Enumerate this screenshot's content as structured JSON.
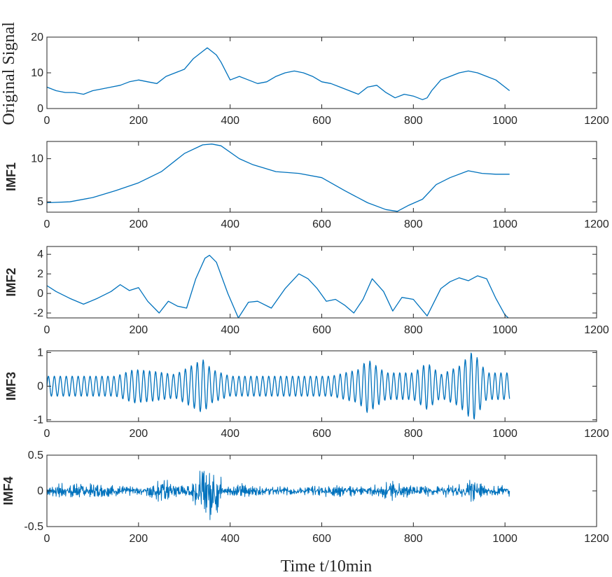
{
  "figure": {
    "xlabel": "Time t/10min",
    "line_color": "#0072BD"
  },
  "chart_data": [
    {
      "type": "line",
      "ylabel": "Original Signal",
      "xlim": [
        0,
        1200
      ],
      "ylim": [
        0,
        20
      ],
      "xticks": [
        0,
        200,
        400,
        600,
        800,
        1000,
        1200
      ],
      "yticks": [
        0,
        10,
        20
      ],
      "series": [
        {
          "name": "Original Signal",
          "x": [
            0,
            20,
            40,
            60,
            80,
            100,
            120,
            140,
            160,
            180,
            200,
            220,
            240,
            260,
            280,
            300,
            320,
            340,
            350,
            360,
            370,
            380,
            400,
            420,
            440,
            460,
            480,
            500,
            520,
            540,
            560,
            580,
            600,
            620,
            640,
            660,
            680,
            700,
            720,
            740,
            760,
            780,
            800,
            820,
            830,
            840,
            860,
            880,
            900,
            920,
            940,
            960,
            980,
            1000,
            1010
          ],
          "y": [
            6,
            5,
            4.5,
            4.5,
            4,
            5,
            5.5,
            6,
            6.5,
            7.5,
            8,
            7.5,
            7,
            9,
            10,
            11,
            14,
            16,
            17,
            16,
            15,
            13,
            8,
            9,
            8,
            7,
            7.5,
            9,
            10,
            10.5,
            10,
            9,
            7.5,
            7,
            6,
            5,
            4,
            6,
            6.5,
            4.5,
            3,
            4,
            3.5,
            2.5,
            3,
            5,
            8,
            9,
            10,
            10.5,
            10,
            9,
            8,
            6,
            5
          ]
        }
      ]
    },
    {
      "type": "line",
      "ylabel": "IMF1",
      "xlim": [
        0,
        1200
      ],
      "ylim": [
        3.8,
        12
      ],
      "xticks": [
        0,
        200,
        400,
        600,
        800,
        1000,
        1200
      ],
      "yticks": [
        5,
        10
      ],
      "series": [
        {
          "name": "IMF1",
          "x": [
            0,
            50,
            100,
            150,
            200,
            250,
            300,
            340,
            360,
            380,
            420,
            450,
            500,
            550,
            600,
            650,
            700,
            740,
            765,
            790,
            820,
            850,
            880,
            920,
            950,
            980,
            1010
          ],
          "y": [
            4.9,
            5,
            5.5,
            6.3,
            7.2,
            8.5,
            10.6,
            11.6,
            11.7,
            11.5,
            10,
            9.3,
            8.5,
            8.3,
            7.8,
            6.3,
            4.9,
            4.1,
            3.9,
            4.6,
            5.3,
            7,
            7.8,
            8.6,
            8.3,
            8.2,
            8.2
          ]
        }
      ]
    },
    {
      "type": "line",
      "ylabel": "IMF2",
      "xlim": [
        0,
        1200
      ],
      "ylim": [
        -2.5,
        4.8
      ],
      "xticks": [
        0,
        200,
        400,
        600,
        800,
        1000,
        1200
      ],
      "yticks": [
        -2,
        0,
        2,
        4
      ],
      "series": [
        {
          "name": "IMF2",
          "x": [
            0,
            20,
            50,
            80,
            110,
            140,
            160,
            180,
            200,
            220,
            245,
            265,
            285,
            305,
            325,
            345,
            355,
            370,
            395,
            418,
            440,
            460,
            490,
            520,
            550,
            570,
            590,
            610,
            630,
            650,
            670,
            690,
            710,
            735,
            755,
            775,
            800,
            830,
            860,
            880,
            900,
            920,
            940,
            960,
            980,
            1000,
            1010
          ],
          "y": [
            0.8,
            0.2,
            -0.5,
            -1.1,
            -0.5,
            0.2,
            0.9,
            0.3,
            0.6,
            -0.8,
            -2,
            -0.8,
            -1.3,
            -1.5,
            1.5,
            3.6,
            3.9,
            3.2,
            0,
            -2.5,
            -0.9,
            -0.8,
            -1.5,
            0.5,
            2,
            1.5,
            0.5,
            -0.8,
            -0.6,
            -1.2,
            -2,
            -0.6,
            1.5,
            0.2,
            -1.8,
            -0.4,
            -0.6,
            -2.3,
            0.5,
            1.2,
            1.6,
            1.3,
            1.8,
            1.5,
            -0.5,
            -2.2,
            -2.6
          ]
        }
      ]
    },
    {
      "type": "line",
      "ylabel": "IMF3",
      "xlim": [
        0,
        1200
      ],
      "ylim": [
        -1.05,
        1.05
      ],
      "xticks": [
        0,
        200,
        400,
        600,
        800,
        1000,
        1200
      ],
      "yticks": [
        -1,
        0,
        1
      ],
      "series": [
        {
          "name": "IMF3",
          "x": [],
          "y": []
        }
      ]
    },
    {
      "type": "line",
      "ylabel": "IMF4",
      "xlim": [
        0,
        1200
      ],
      "ylim": [
        -0.5,
        0.5
      ],
      "xticks": [
        0,
        200,
        400,
        600,
        800,
        1000,
        1200
      ],
      "yticks": [
        -0.5,
        0,
        0.5
      ],
      "series": [
        {
          "name": "IMF4",
          "x": [],
          "y": []
        }
      ]
    }
  ]
}
